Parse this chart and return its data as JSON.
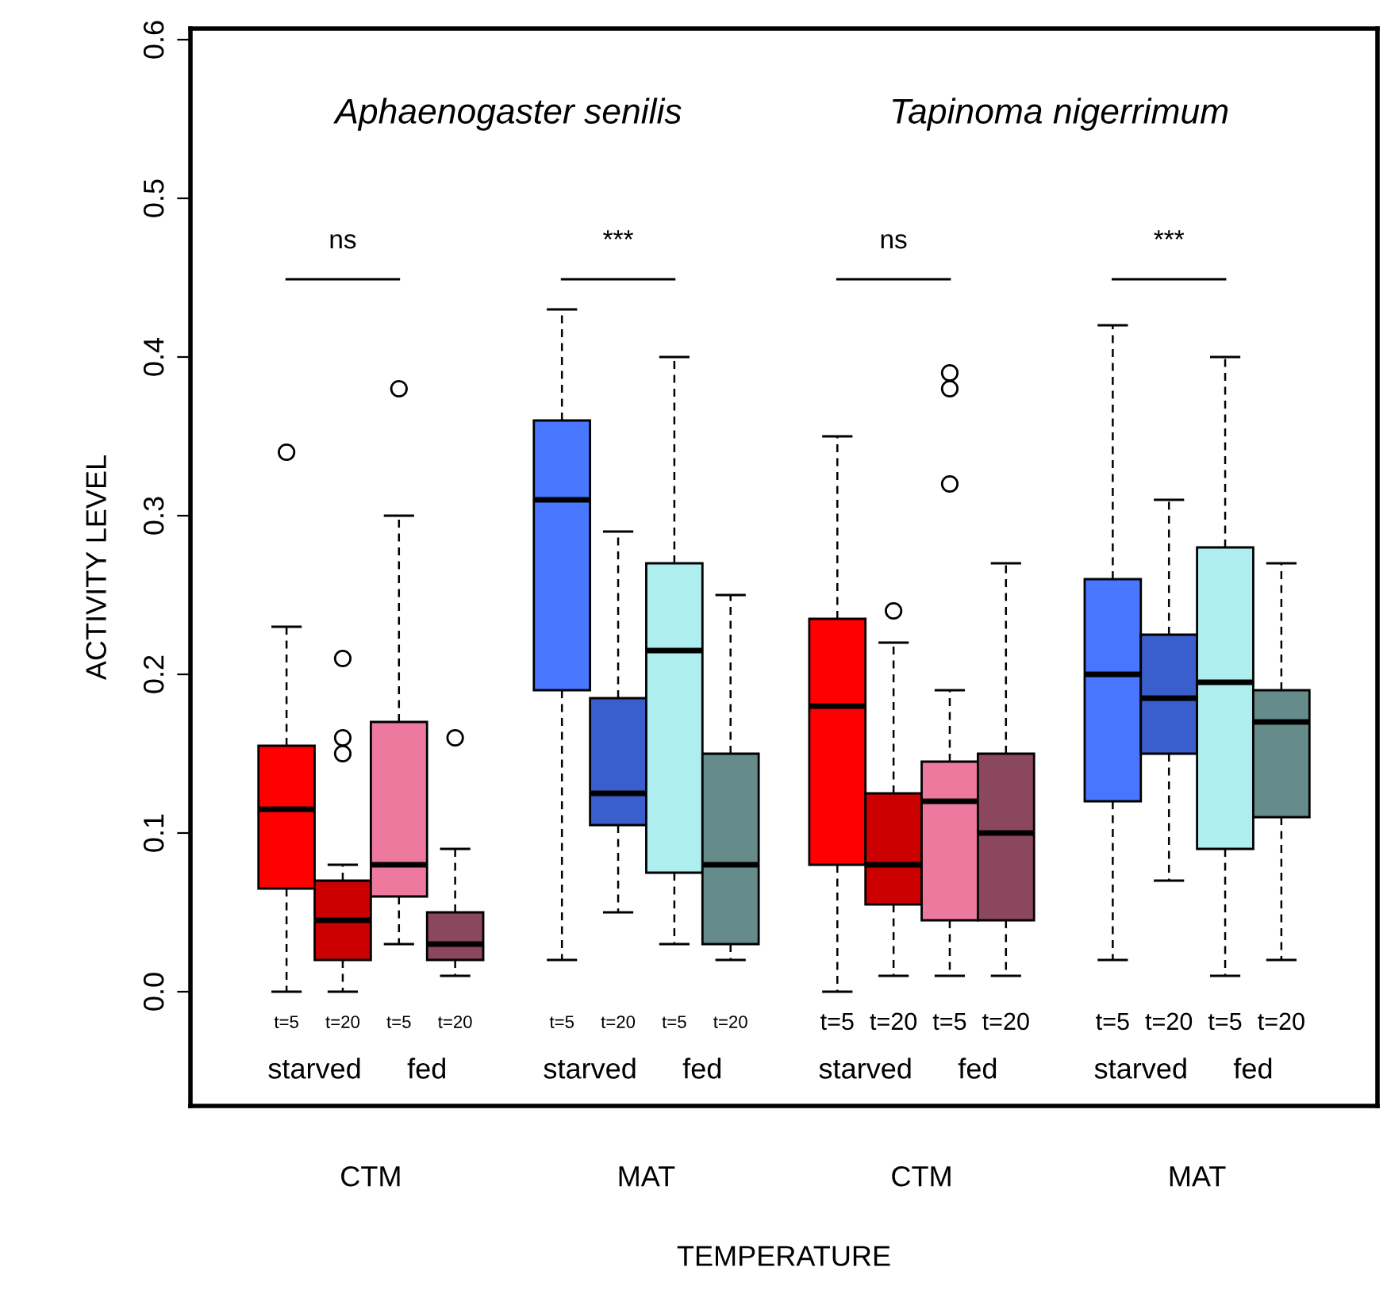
{
  "chart_data": {
    "type": "box",
    "xlabel": "TEMPERATURE",
    "ylabel": "ACTIVITY LEVEL",
    "categories": [
      "t=5",
      "t=20",
      "t=5",
      "t=20",
      "t=5",
      "t=20",
      "t=5",
      "t=20",
      "t=5",
      "t=20",
      "t=5",
      "t=20",
      "t=5",
      "t=20",
      "t=5",
      "t=20"
    ],
    "colors": [
      "#ff0000",
      "#cc0000",
      "#ee799f",
      "#8b475d",
      "#4876ff",
      "#3a5fcd",
      "#aeeeee",
      "#668b8b",
      "#ff0000",
      "#cc0000",
      "#ee799f",
      "#8b475d",
      "#4876ff",
      "#3a5fcd",
      "#aeeeee",
      "#668b8b"
    ],
    "boxes": [
      {
        "low": 0,
        "q1": 0.065,
        "median": 0.115,
        "q3": 0.155,
        "high": 0.23,
        "outliers": [
          0.34
        ]
      },
      {
        "low": 0,
        "q1": 0.02,
        "median": 0.045,
        "q3": 0.07,
        "high": 0.08,
        "outliers": [
          0.21,
          0.16,
          0.15
        ]
      },
      {
        "low": 0.03,
        "q1": 0.06,
        "median": 0.08,
        "q3": 0.17,
        "high": 0.3,
        "outliers": [
          0.38
        ]
      },
      {
        "low": 0.01,
        "q1": 0.02,
        "median": 0.03,
        "q3": 0.05,
        "high": 0.09,
        "outliers": [
          0.16
        ]
      },
      {
        "low": 0.02,
        "q1": 0.19,
        "median": 0.31,
        "q3": 0.36,
        "high": 0.43
      },
      {
        "low": 0.05,
        "q1": 0.105,
        "median": 0.125,
        "q3": 0.185,
        "high": 0.29
      },
      {
        "low": 0.03,
        "q1": 0.075,
        "median": 0.215,
        "q3": 0.27,
        "high": 0.4
      },
      {
        "low": 0.02,
        "q1": 0.03,
        "median": 0.08,
        "q3": 0.15,
        "high": 0.25
      },
      {
        "low": 0,
        "q1": 0.08,
        "median": 0.18,
        "q3": 0.235,
        "high": 0.35
      },
      {
        "low": 0.01,
        "q1": 0.055,
        "median": 0.08,
        "q3": 0.125,
        "high": 0.22,
        "outliers": [
          0.24
        ]
      },
      {
        "low": 0.01,
        "q1": 0.045,
        "median": 0.12,
        "q3": 0.145,
        "high": 0.19,
        "outliers": [
          0.32,
          0.38,
          0.39
        ]
      },
      {
        "low": 0.01,
        "q1": 0.045,
        "median": 0.1,
        "q3": 0.15,
        "high": 0.27
      },
      {
        "low": 0.02,
        "q1": 0.12,
        "median": 0.2,
        "q3": 0.26,
        "high": 0.42
      },
      {
        "low": 0.07,
        "q1": 0.15,
        "median": 0.185,
        "q3": 0.225,
        "high": 0.31
      },
      {
        "low": 0.01,
        "q1": 0.09,
        "median": 0.195,
        "q3": 0.28,
        "high": 0.4
      },
      {
        "low": 0.02,
        "q1": 0.11,
        "median": 0.17,
        "q3": 0.19,
        "high": 0.27
      }
    ],
    "ylim": [
      -0.072,
      0.607
    ],
    "yticks": [
      {
        "value": 0,
        "label": "0.0"
      },
      {
        "value": 0.1,
        "label": "0.1"
      },
      {
        "value": 0.2,
        "label": "0.2"
      },
      {
        "value": 0.3,
        "label": "0.3"
      },
      {
        "value": 0.4,
        "label": "0.4"
      },
      {
        "value": 0.5,
        "label": "0.5"
      },
      {
        "value": 0.6,
        "label": "0.6"
      }
    ],
    "annotations": [
      "Aphaenogaster senilis",
      "Tapinoma nigerrimum",
      "ns",
      "***",
      "ns",
      "***",
      "starved",
      "fed",
      "starved",
      "fed",
      "starved",
      "fed",
      "starved",
      "fed",
      "CTM",
      "MAT",
      "CTM",
      "MAT"
    ]
  }
}
